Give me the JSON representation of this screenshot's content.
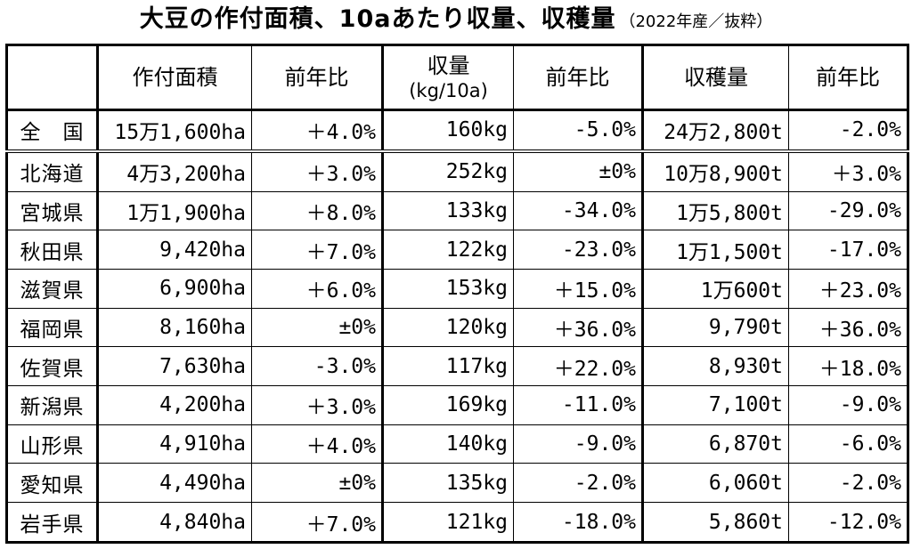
{
  "title": {
    "main": "大豆の作付面積、10aあたり収量、収穫量",
    "sub": "（2022年産／抜粋）"
  },
  "table": {
    "headers": [
      "",
      "作付面積",
      "前年比",
      "収量",
      "(kg/10a)",
      "前年比",
      "収穫量",
      "前年比"
    ],
    "rows": [
      [
        "全　国",
        "15万1,600ha",
        "＋4.0%",
        "160kg",
        "-5.0%",
        "24万2,800t",
        "-2.0%"
      ],
      [
        "北海道",
        "4万3,200ha",
        "＋3.0%",
        "252kg",
        "±0%",
        "10万8,900t",
        "＋3.0%"
      ],
      [
        "宮城県",
        "1万1,900ha",
        "＋8.0%",
        "133kg",
        "-34.0%",
        "1万5,800t",
        "-29.0%"
      ],
      [
        "秋田県",
        "9,420ha",
        "＋7.0%",
        "122kg",
        "-23.0%",
        "1万1,500t",
        "-17.0%"
      ],
      [
        "滋賀県",
        "6,900ha",
        "＋6.0%",
        "153kg",
        "＋15.0%",
        "1万600t",
        "＋23.0%"
      ],
      [
        "福岡県",
        "8,160ha",
        "±0%",
        "120kg",
        "＋36.0%",
        "9,790t",
        "＋36.0%"
      ],
      [
        "佐賀県",
        "7,630ha",
        "-3.0%",
        "117kg",
        "＋22.0%",
        "8,930t",
        "＋18.0%"
      ],
      [
        "新潟県",
        "4,200ha",
        "＋3.0%",
        "169kg",
        "-11.0%",
        "7,100t",
        "-9.0%"
      ],
      [
        "山形県",
        "4,910ha",
        "＋4.0%",
        "140kg",
        "-9.0%",
        "6,870t",
        "-6.0%"
      ],
      [
        "愛知県",
        "4,490ha",
        "±0%",
        "135kg",
        "-2.0%",
        "6,060t",
        "-2.0%"
      ],
      [
        "岩手県",
        "4,840ha",
        "＋7.0%",
        "121kg",
        "-18.0%",
        "5,860t",
        "-12.0%"
      ]
    ]
  }
}
